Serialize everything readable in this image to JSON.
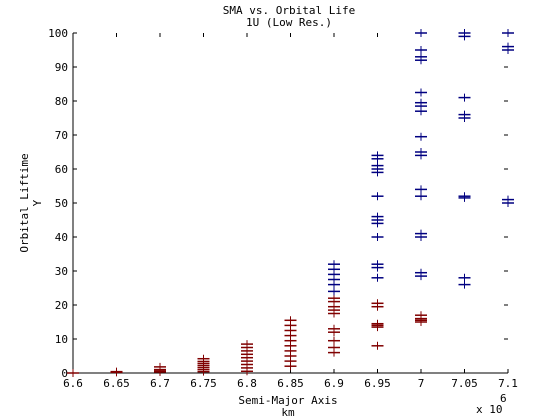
{
  "chart_data": {
    "type": "scatter",
    "title": "SMA vs. Orbital Life",
    "subtitle": "1U (Low Res.)",
    "xlabel": "Semi-Major Axis",
    "xlabel_unit": "km",
    "ylabel": "Orbital Liftime",
    "ylabel_unit": "Y",
    "x_exponent_label": "x 10",
    "x_exponent_value": "6",
    "xlim": [
      6.6,
      7.1
    ],
    "ylim": [
      0,
      100
    ],
    "xticks": [
      "6.6",
      "6.65",
      "6.7",
      "6.75",
      "6.8",
      "6.85",
      "6.9",
      "6.95",
      "7",
      "7.05",
      "7.1"
    ],
    "yticks": [
      "0",
      "10",
      "20",
      "30",
      "40",
      "50",
      "60",
      "70",
      "80",
      "90",
      "100"
    ],
    "grid": false,
    "marker": "plus",
    "series_colors": [
      "#800000",
      "#000080"
    ],
    "series": [
      {
        "points": [
          [
            6.6,
            0
          ],
          [
            6.65,
            0.2
          ],
          [
            6.65,
            0.4
          ],
          [
            6.7,
            0.3
          ],
          [
            6.7,
            0.6
          ],
          [
            6.7,
            1.0
          ],
          [
            6.7,
            1.8
          ],
          [
            6.75,
            0.4
          ],
          [
            6.75,
            1.0
          ],
          [
            6.75,
            1.6
          ],
          [
            6.75,
            2.2
          ],
          [
            6.75,
            2.8
          ],
          [
            6.75,
            3.4
          ],
          [
            6.75,
            4.2
          ],
          [
            6.8,
            0.5
          ],
          [
            6.8,
            1.5
          ],
          [
            6.8,
            2.5
          ],
          [
            6.8,
            3.5
          ],
          [
            6.8,
            4.5
          ],
          [
            6.8,
            5.5
          ],
          [
            6.8,
            6.5
          ],
          [
            6.8,
            7.5
          ],
          [
            6.8,
            8.5
          ],
          [
            6.85,
            2.0
          ],
          [
            6.85,
            3.5
          ],
          [
            6.85,
            5.0
          ],
          [
            6.85,
            6.5
          ],
          [
            6.85,
            8.0
          ],
          [
            6.85,
            9.5
          ],
          [
            6.85,
            11.0
          ],
          [
            6.85,
            12.5
          ],
          [
            6.85,
            14.0
          ],
          [
            6.85,
            15.5
          ],
          [
            6.9,
            6.0
          ],
          [
            6.9,
            7.5
          ],
          [
            6.9,
            9.5
          ],
          [
            6.9,
            12.0
          ],
          [
            6.9,
            13.0
          ],
          [
            6.9,
            17.5
          ],
          [
            6.9,
            18.5
          ],
          [
            6.9,
            19.5
          ],
          [
            6.9,
            21.0
          ],
          [
            6.9,
            22.0
          ],
          [
            6.95,
            8.0
          ],
          [
            6.95,
            13.5
          ],
          [
            6.95,
            14.0
          ],
          [
            6.95,
            14.5
          ],
          [
            6.95,
            19.5
          ],
          [
            6.95,
            20.5
          ],
          [
            7.0,
            15.0
          ],
          [
            7.0,
            15.5
          ],
          [
            7.0,
            16.0
          ],
          [
            7.0,
            17.0
          ]
        ]
      },
      {
        "points": [
          [
            6.9,
            24.0
          ],
          [
            6.9,
            26.0
          ],
          [
            6.9,
            27.5
          ],
          [
            6.9,
            29.0
          ],
          [
            6.9,
            30.5
          ],
          [
            6.9,
            32.0
          ],
          [
            6.95,
            28.0
          ],
          [
            6.95,
            31.0
          ],
          [
            6.95,
            32.0
          ],
          [
            6.95,
            40.0
          ],
          [
            6.95,
            44.0
          ],
          [
            6.95,
            45.0
          ],
          [
            6.95,
            46.0
          ],
          [
            6.95,
            52.0
          ],
          [
            6.95,
            59.0
          ],
          [
            6.95,
            60.0
          ],
          [
            6.95,
            61.0
          ],
          [
            6.95,
            63.0
          ],
          [
            6.95,
            64.0
          ],
          [
            7.0,
            28.5
          ],
          [
            7.0,
            29.5
          ],
          [
            7.0,
            40.0
          ],
          [
            7.0,
            41.0
          ],
          [
            7.0,
            52.0
          ],
          [
            7.0,
            54.0
          ],
          [
            7.0,
            64.0
          ],
          [
            7.0,
            65.0
          ],
          [
            7.0,
            69.5
          ],
          [
            7.0,
            77.0
          ],
          [
            7.0,
            78.5
          ],
          [
            7.0,
            79.5
          ],
          [
            7.0,
            82.5
          ],
          [
            7.0,
            92.0
          ],
          [
            7.0,
            93.0
          ],
          [
            7.0,
            95.0
          ],
          [
            7.0,
            100.0
          ],
          [
            7.05,
            26.0
          ],
          [
            7.05,
            28.0
          ],
          [
            7.05,
            51.5
          ],
          [
            7.05,
            52.0
          ],
          [
            7.05,
            75.0
          ],
          [
            7.05,
            76.0
          ],
          [
            7.05,
            81.0
          ],
          [
            7.05,
            99.0
          ],
          [
            7.05,
            100.0
          ],
          [
            7.1,
            50.0
          ],
          [
            7.1,
            51.0
          ],
          [
            7.1,
            95.0
          ],
          [
            7.1,
            96.0
          ],
          [
            7.1,
            100.0
          ]
        ]
      }
    ]
  }
}
